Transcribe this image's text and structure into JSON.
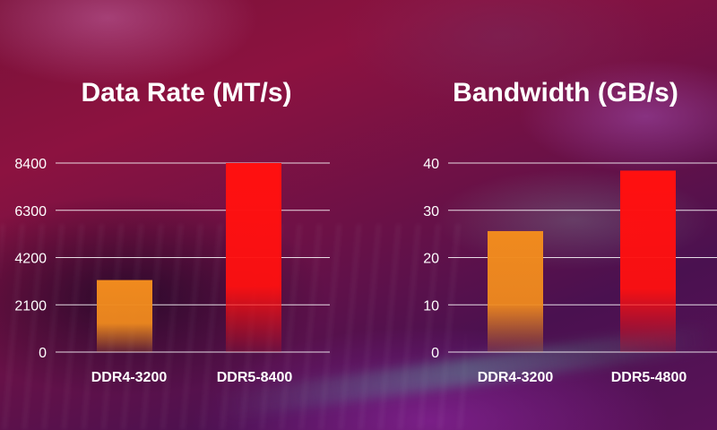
{
  "chart_data": [
    {
      "type": "bar",
      "title": "Data Rate (MT/s)",
      "categories": [
        "DDR4-3200",
        "DDR5-8400"
      ],
      "values": [
        3200,
        8400
      ],
      "yticks": [
        "0",
        "2100",
        "4200",
        "6300",
        "8400"
      ],
      "ylim": [
        0,
        8400
      ],
      "bar_colors": [
        "#f08a1e",
        "#ff1010"
      ],
      "grid": true,
      "legend": "none"
    },
    {
      "type": "bar",
      "title": "Bandwidth (GB/s)",
      "categories": [
        "DDR4-3200",
        "DDR5-4800"
      ],
      "values": [
        25.6,
        38.4
      ],
      "yticks": [
        "0",
        "10",
        "20",
        "30",
        "40"
      ],
      "ylim": [
        0,
        40
      ],
      "bar_colors": [
        "#f08a1e",
        "#ff1010"
      ],
      "grid": true,
      "legend": "none"
    }
  ]
}
